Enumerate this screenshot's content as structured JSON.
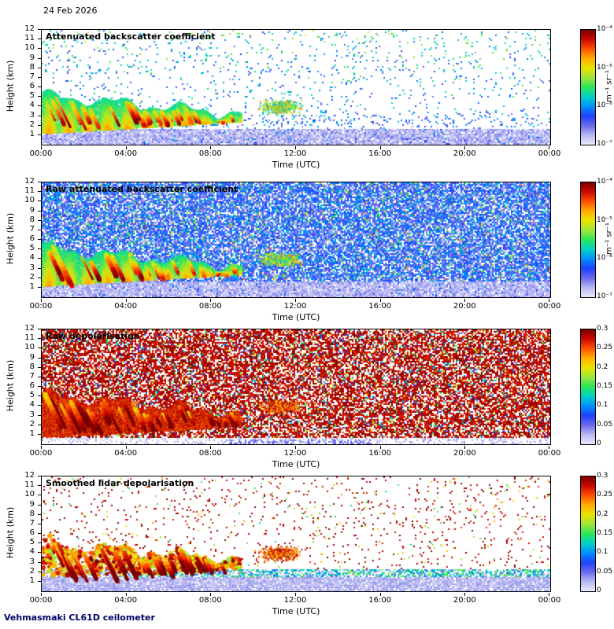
{
  "header": {
    "date": "24 Feb 2026"
  },
  "footer": {
    "instrument": "Vehmasmaki CL61D ceilometer"
  },
  "axes": {
    "xlabel": "Time (UTC)",
    "ylabel": "Height (km)",
    "x_ticks": [
      "00:00",
      "04:00",
      "08:00",
      "12:00",
      "16:00",
      "20:00",
      "00:00"
    ],
    "y_ticks": [
      "12",
      "11",
      "10",
      "9",
      "8",
      "7",
      "6",
      "5",
      "4",
      "3",
      "2",
      "1"
    ],
    "x_range_hours": [
      0,
      24
    ],
    "y_range_km": [
      0,
      12
    ]
  },
  "colors": {
    "colormap": [
      "#eaeafc",
      "#b8b8f2",
      "#6a6aea",
      "#2041ff",
      "#0090ff",
      "#00d2c8",
      "#2ae65a",
      "#9ce63c",
      "#e8e400",
      "#ffae00",
      "#ff5200",
      "#cc0800",
      "#7a0000"
    ],
    "frame": "#000000",
    "footer_color": "#000066"
  },
  "panels": [
    {
      "key": "bs_clean",
      "title": "Attenuated backscatter coefficient",
      "colorbar": {
        "scale": "log",
        "ticks": [
          "10⁻⁴",
          "10⁻⁵",
          "10⁻⁶",
          "10⁻⁷"
        ],
        "unit": "m⁻¹ sr⁻¹"
      }
    },
    {
      "key": "bs_raw",
      "title": "Raw attenuated backscatter coefficient",
      "colorbar": {
        "scale": "log",
        "ticks": [
          "10⁻⁴",
          "10⁻⁵",
          "10⁻⁶",
          "10⁻⁷"
        ],
        "unit": "m⁻¹ sr⁻¹"
      }
    },
    {
      "key": "depol_raw",
      "title": "Raw depolarisation",
      "colorbar": {
        "scale": "linear",
        "ticks": [
          "0.3",
          "0.25",
          "0.2",
          "0.15",
          "0.1",
          "0.05",
          "0"
        ],
        "unit": null
      }
    },
    {
      "key": "depol_smooth",
      "title": "Smoothed lidar depolarisation",
      "colorbar": {
        "scale": "linear",
        "ticks": [
          "0.3",
          "0.25",
          "0.2",
          "0.15",
          "0.1",
          "0.05",
          "0"
        ],
        "unit": null
      }
    }
  ],
  "chart_data": [
    {
      "type": "heatmap",
      "title": "Attenuated backscatter coefficient",
      "xlabel": "Time (UTC)",
      "ylabel": "Height (km)",
      "x_ticks": [
        "00:00",
        "04:00",
        "08:00",
        "12:00",
        "16:00",
        "20:00",
        "00:00"
      ],
      "x_range_hours": [
        0,
        24
      ],
      "y_range_km": [
        0,
        12
      ],
      "colorbar": {
        "scale": "log",
        "min": "1e-7",
        "max": "1e-4",
        "unit": "m⁻¹ sr⁻¹"
      },
      "features": [
        {
          "name": "descending precipitating cloud / virga layer",
          "hours": [
            0,
            2,
            4,
            6,
            8,
            9.5
          ],
          "top_km": [
            5.5,
            4.8,
            4.3,
            3.9,
            3.5,
            3.2
          ],
          "base_km": [
            1.3,
            1.6,
            1.8,
            2.1,
            2.3,
            2.5
          ],
          "value": "1e-5 to 1e-4 (green-yellow-red fall streaks)"
        },
        {
          "name": "isolated weak cell",
          "hours": [
            10.3,
            12.3
          ],
          "top_km": [
            4.8,
            4.2
          ],
          "base_km": [
            3.3,
            3.5
          ],
          "value": "~1e-5"
        },
        {
          "name": "near-surface / boundary layer",
          "hours": [
            0,
            24
          ],
          "top_km": [
            1.7,
            1.7
          ],
          "base_km": [
            0,
            0
          ],
          "value": "~1e-7 to 1e-6 (pale blue)"
        },
        {
          "name": "background",
          "value": "white with sparse blue/green noise speckle, greener aloft"
        }
      ]
    },
    {
      "type": "heatmap",
      "title": "Raw attenuated backscatter coefficient",
      "xlabel": "Time (UTC)",
      "ylabel": "Height (km)",
      "x_range_hours": [
        0,
        24
      ],
      "y_range_km": [
        0,
        12
      ],
      "colorbar": {
        "scale": "log",
        "min": "1e-7",
        "max": "1e-4",
        "unit": "m⁻¹ sr⁻¹"
      },
      "features": [
        {
          "name": "same descending cloud layer as panel 1",
          "hours": [
            0,
            9.5
          ],
          "top_km": [
            5.5,
            3.2
          ],
          "base_km": [
            1.3,
            2.5
          ],
          "value": "1e-5 to 1e-4"
        },
        {
          "name": "isolated weak cell",
          "hours": [
            10.3,
            12.3
          ],
          "top_km": [
            4.8,
            4.2
          ],
          "base_km": [
            3.3,
            3.5
          ],
          "value": "~1e-5"
        },
        {
          "name": "receiver noise background",
          "coverage": "full field above ~1.7 km",
          "value": "~1e-7 to 1e-6 dense blue speckle with sparse green/yellow"
        },
        {
          "name": "near-surface band",
          "hours": [
            0,
            24
          ],
          "top_km": [
            1.7,
            1.7
          ],
          "value": "pale lavender ~1e-7"
        }
      ]
    },
    {
      "type": "heatmap",
      "title": "Raw depolarisation",
      "xlabel": "Time (UTC)",
      "ylabel": "Height (km)",
      "x_range_hours": [
        0,
        24
      ],
      "y_range_km": [
        0,
        12
      ],
      "colorbar": {
        "scale": "linear",
        "min": 0,
        "max": 0.3
      },
      "features": [
        {
          "name": "noise-saturated region",
          "coverage": "everywhere above ~0.8 km",
          "value": "~0.3 (dense maroon) with sparse low-value speckle"
        },
        {
          "name": "precipitation region with elevated depolarisation",
          "hours": [
            0,
            9.3
          ],
          "top_km": [
            5.5,
            3.2
          ],
          "base_km": [
            0.9,
            2.2
          ],
          "value": "0.2-0.3 (red/orange streaks)"
        },
        {
          "name": "clean near-surface band",
          "hours": [
            0,
            24
          ],
          "top_km": [
            0.75,
            0.75
          ],
          "value": "~0-0.05 (white / pale blue)"
        },
        {
          "name": "shallow pale-blue smear",
          "hours": [
            9,
            15
          ],
          "height_km": 0.4,
          "value": "~0.05"
        }
      ]
    },
    {
      "type": "heatmap",
      "title": "Smoothed lidar depolarisation",
      "xlabel": "Time (UTC)",
      "ylabel": "Height (km)",
      "x_range_hours": [
        0,
        24
      ],
      "y_range_km": [
        0,
        12
      ],
      "colorbar": {
        "scale": "linear",
        "min": 0,
        "max": 0.3
      },
      "features": [
        {
          "name": "precipitation region",
          "hours": [
            0,
            9.4
          ],
          "top_km": [
            5.5,
            3.2
          ],
          "base_km": [
            1.7,
            2.5
          ],
          "value": "0.15-0.3 (red/dark-red blobs with orange-yellow cores)"
        },
        {
          "name": "isolated cell",
          "hours": [
            10,
            12.5
          ],
          "height_km": [
            2.5,
            4.5
          ],
          "value": "~0.25-0.3 sparse"
        },
        {
          "name": "aerosol layer",
          "hours": [
            0,
            24
          ],
          "height_km": [
            1.6,
            2.3
          ],
          "value": "0.05-0.15 (green/cyan), denser after 05:00"
        },
        {
          "name": "surface layer",
          "hours": [
            0,
            24
          ],
          "height_km": [
            0,
            1.5
          ],
          "value": "~0-0.05 (pale lavender)"
        },
        {
          "name": "background",
          "value": "white with sparse maroon (~0.3) noise speckle"
        }
      ]
    }
  ]
}
